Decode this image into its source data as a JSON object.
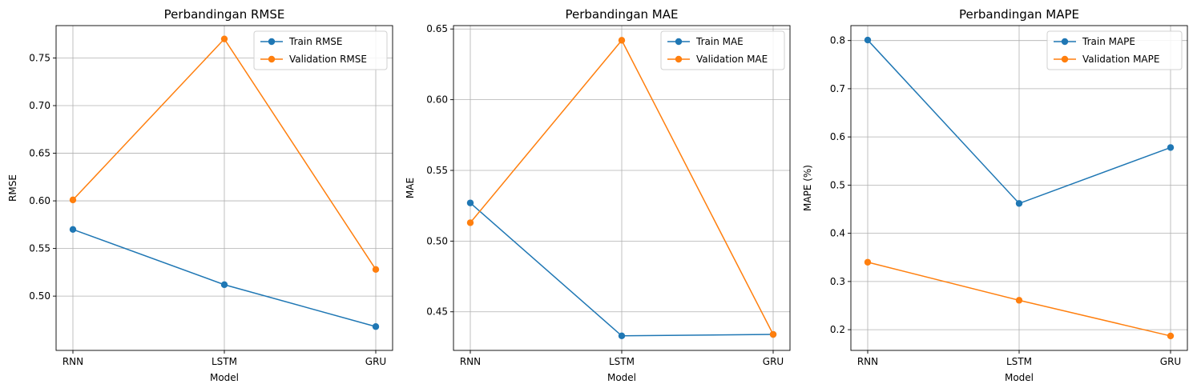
{
  "chart_data": [
    {
      "type": "line",
      "title": "Perbandingan RMSE",
      "xlabel": "Model",
      "ylabel": "RMSE",
      "categories": [
        "RNN",
        "LSTM",
        "GRU"
      ],
      "ylim": [
        0.443,
        0.784
      ],
      "yticks": [
        "0.50",
        "0.55",
        "0.60",
        "0.65",
        "0.70",
        "0.75"
      ],
      "grid": true,
      "legend_position": "top-right",
      "series": [
        {
          "name": "Train RMSE",
          "color": "#1f77b4",
          "values": [
            0.57,
            0.512,
            0.468
          ]
        },
        {
          "name": "Validation RMSE",
          "color": "#ff7f0e",
          "values": [
            0.601,
            0.77,
            0.528
          ]
        }
      ]
    },
    {
      "type": "line",
      "title": "Perbandingan MAE",
      "xlabel": "Model",
      "ylabel": "MAE",
      "categories": [
        "RNN",
        "LSTM",
        "GRU"
      ],
      "ylim": [
        0.4227,
        0.6524
      ],
      "yticks": [
        "0.45",
        "0.50",
        "0.55",
        "0.60",
        "0.65"
      ],
      "grid": true,
      "legend_position": "top-right",
      "series": [
        {
          "name": "Train MAE",
          "color": "#1f77b4",
          "values": [
            0.527,
            0.433,
            0.434
          ]
        },
        {
          "name": "Validation MAE",
          "color": "#ff7f0e",
          "values": [
            0.513,
            0.642,
            0.434
          ]
        }
      ]
    },
    {
      "type": "line",
      "title": "Perbandingan MAPE",
      "xlabel": "Model",
      "ylabel": "MAPE (%)",
      "categories": [
        "RNN",
        "LSTM",
        "GRU"
      ],
      "ylim": [
        0.157,
        0.831
      ],
      "yticks": [
        "0.2",
        "0.3",
        "0.4",
        "0.5",
        "0.6",
        "0.7",
        "0.8"
      ],
      "grid": true,
      "legend_position": "top-right",
      "series": [
        {
          "name": "Train MAPE",
          "color": "#1f77b4",
          "values": [
            0.801,
            0.462,
            0.578
          ]
        },
        {
          "name": "Validation MAPE",
          "color": "#ff7f0e",
          "values": [
            0.34,
            0.261,
            0.187
          ]
        }
      ]
    }
  ]
}
